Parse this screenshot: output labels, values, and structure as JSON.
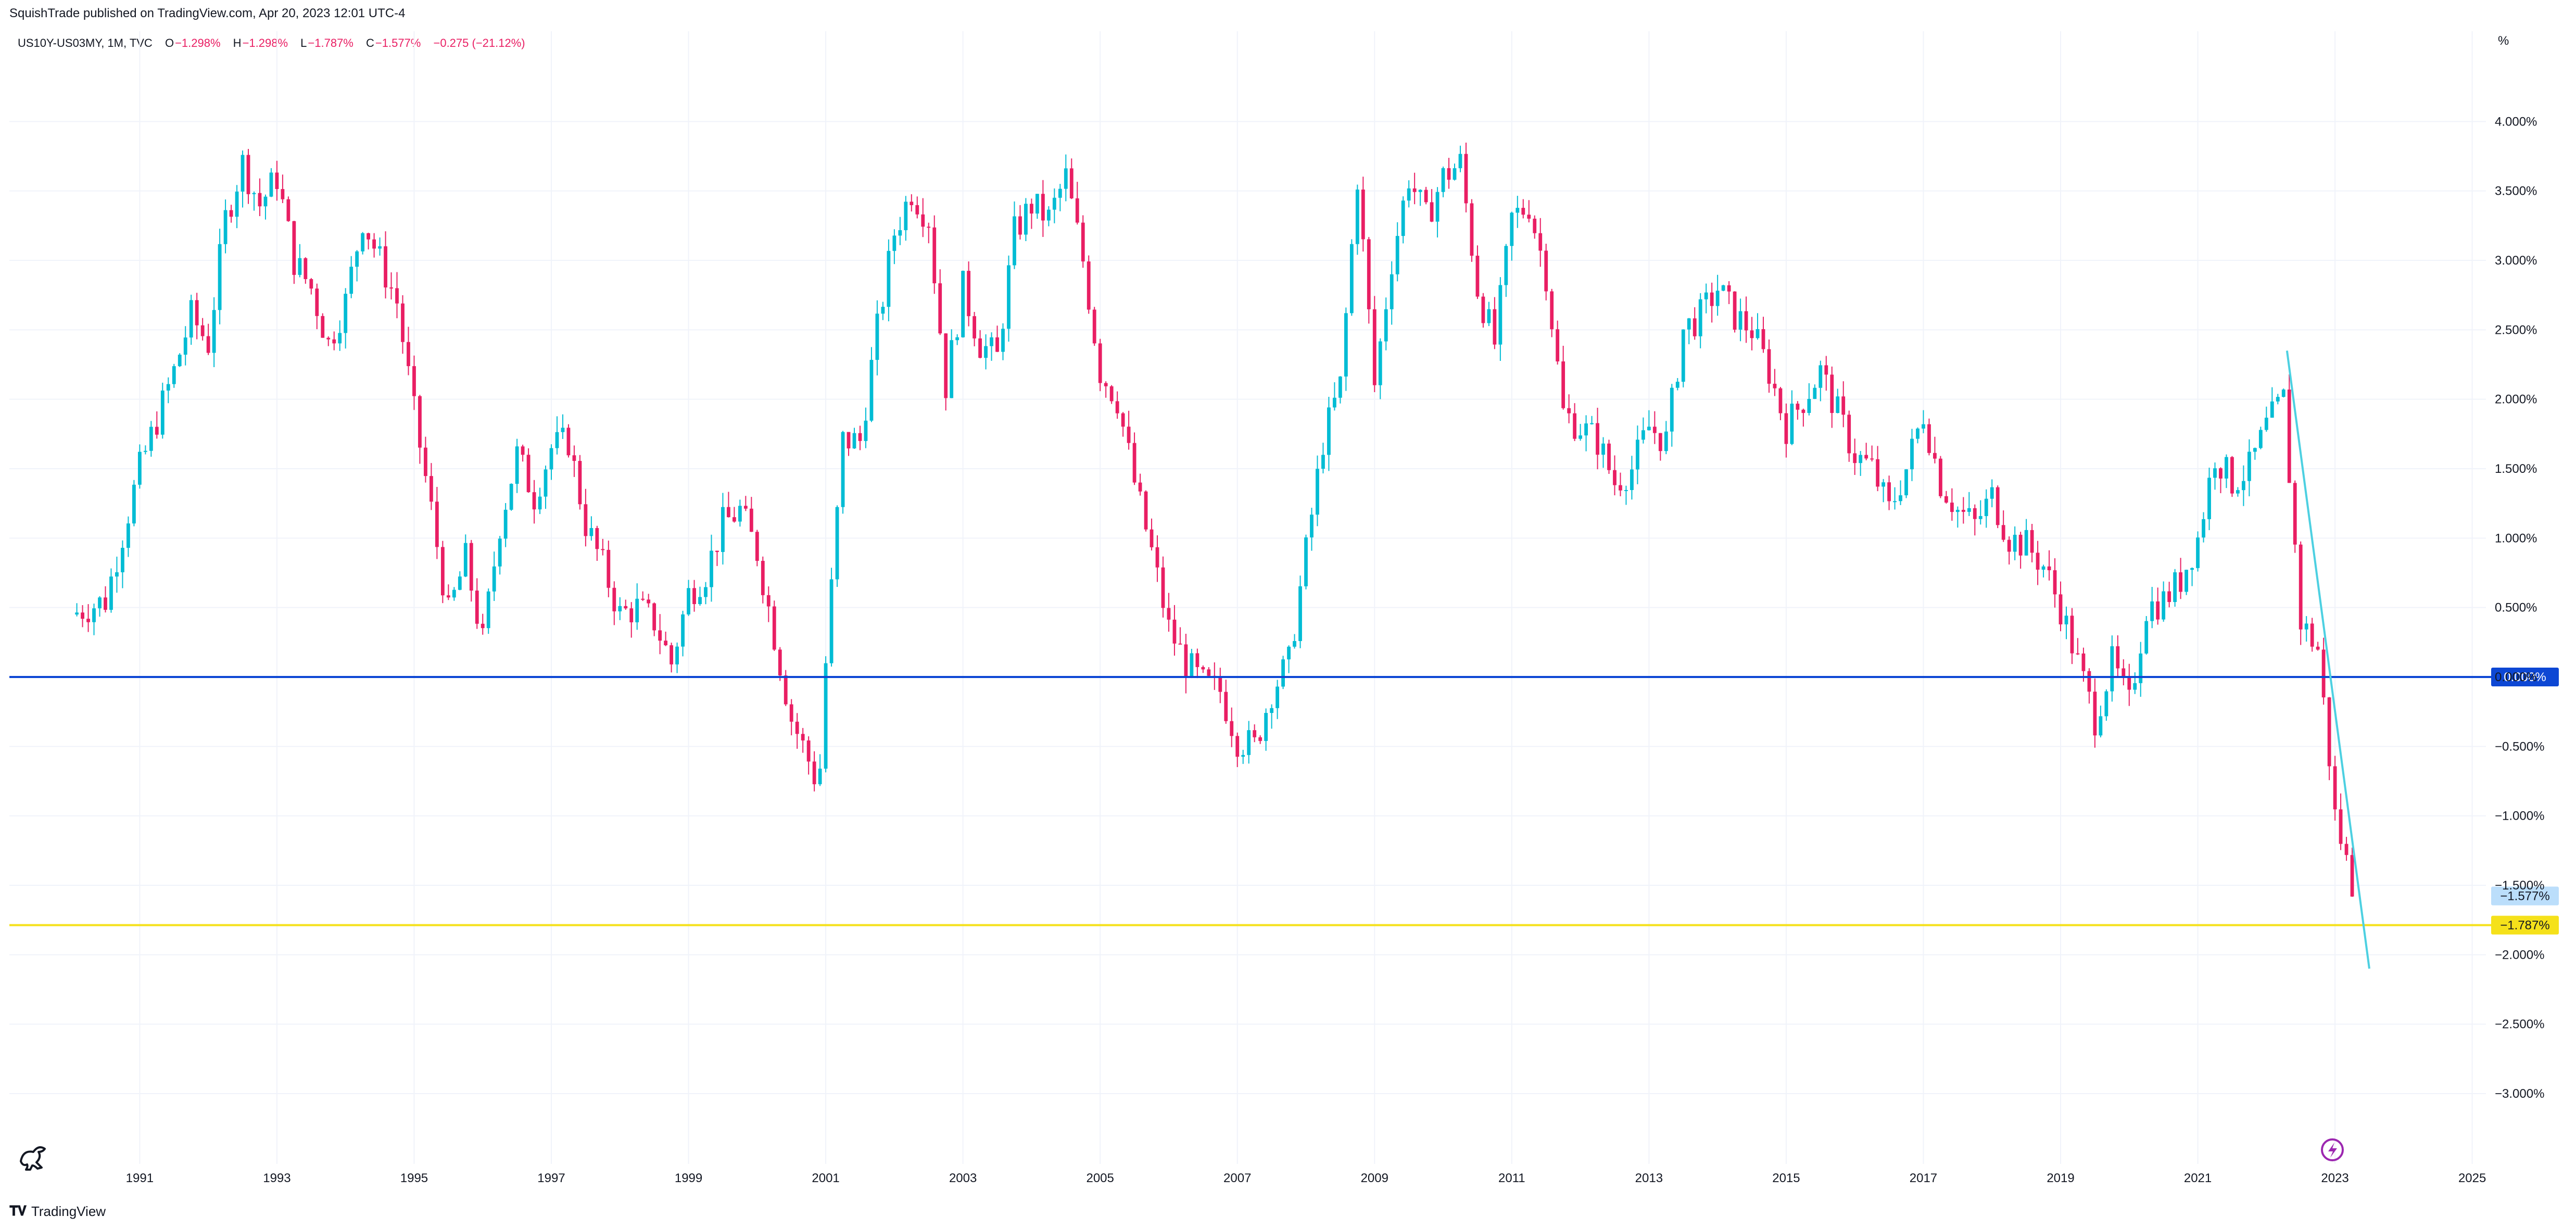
{
  "header": {
    "published": "SquishTrade published on TradingView.com, Apr 20, 2023 12:01 UTC-4"
  },
  "legend": {
    "symbol": "US10Y-US03MY, 1M, TVC",
    "o_label": "O",
    "o_value": "−1.298%",
    "h_label": "H",
    "h_value": "−1.298%",
    "l_label": "L",
    "l_value": "−1.787%",
    "c_label": "C",
    "c_value": "−1.577%",
    "change": "−0.275 (−21.12%)"
  },
  "footer": {
    "brand": "TradingView"
  },
  "colors": {
    "up": "#00bcd4",
    "down": "#e91e63",
    "zero_line": "#0d47d4",
    "low_line": "#f5e11a",
    "trendline": "#4dd0e1",
    "grid": "#f0f3fa"
  },
  "chart_data": {
    "type": "candlestick",
    "unit": "%",
    "y_axis_ticks": [
      "4.000%",
      "3.500%",
      "3.000%",
      "2.500%",
      "2.000%",
      "1.500%",
      "1.000%",
      "0.500%",
      "0.000%",
      "−0.500%",
      "−1.000%",
      "−1.500%",
      "−2.000%",
      "−2.500%",
      "−3.000%"
    ],
    "y_tick_values": [
      4.0,
      3.5,
      3.0,
      2.5,
      2.0,
      1.5,
      1.0,
      0.5,
      0.0,
      -0.5,
      -1.0,
      -1.5,
      -2.0,
      -2.5,
      -3.0
    ],
    "ylim": [
      -3.3,
      4.5
    ],
    "x_axis_ticks": [
      "1991",
      "1993",
      "1995",
      "1997",
      "1999",
      "2001",
      "2003",
      "2005",
      "2007",
      "2009",
      "2011",
      "2013",
      "2015",
      "2017",
      "2019",
      "2021",
      "2023",
      "2025"
    ],
    "xlim": [
      1989.1,
      2025.2
    ],
    "horizontal_lines": [
      {
        "value": 0.0,
        "label": "0.000%"
      },
      {
        "value": -1.787,
        "label": "−1.787%"
      }
    ],
    "last_price_label": {
      "value": -1.577,
      "label": "−1.577%"
    },
    "trendline": {
      "start": [
        2022.3,
        2.35
      ],
      "end": [
        2023.5,
        -2.1
      ]
    },
    "monthly_close_anchors": [
      [
        1990.0,
        0.45
      ],
      [
        1990.5,
        0.55
      ],
      [
        1991.0,
        1.5
      ],
      [
        1991.5,
        2.2
      ],
      [
        1991.75,
        2.6
      ],
      [
        1992.0,
        2.4
      ],
      [
        1992.25,
        3.3
      ],
      [
        1992.5,
        3.7
      ],
      [
        1992.75,
        3.4
      ],
      [
        1993.0,
        3.6
      ],
      [
        1993.25,
        3.0
      ],
      [
        1993.5,
        2.8
      ],
      [
        1993.75,
        2.4
      ],
      [
        1994.0,
        2.7
      ],
      [
        1994.25,
        3.3
      ],
      [
        1994.5,
        3.0
      ],
      [
        1994.75,
        2.7
      ],
      [
        1995.0,
        1.9
      ],
      [
        1995.25,
        1.2
      ],
      [
        1995.5,
        0.45
      ],
      [
        1995.75,
        0.85
      ],
      [
        1996.0,
        0.25
      ],
      [
        1996.25,
        1.1
      ],
      [
        1996.5,
        1.6
      ],
      [
        1996.75,
        1.3
      ],
      [
        1997.0,
        1.65
      ],
      [
        1997.25,
        1.7
      ],
      [
        1997.5,
        1.1
      ],
      [
        1997.75,
        0.8
      ],
      [
        1998.0,
        0.45
      ],
      [
        1998.25,
        0.5
      ],
      [
        1998.5,
        0.4
      ],
      [
        1998.75,
        0.1
      ],
      [
        1999.0,
        0.6
      ],
      [
        1999.25,
        0.75
      ],
      [
        1999.5,
        1.1
      ],
      [
        1999.75,
        1.2
      ],
      [
        2000.0,
        0.9
      ],
      [
        2000.25,
        0.3
      ],
      [
        2000.5,
        -0.3
      ],
      [
        2000.75,
        -0.6
      ],
      [
        2000.9,
        -0.8
      ],
      [
        2001.0,
        0.1
      ],
      [
        2001.25,
        1.7
      ],
      [
        2001.5,
        1.7
      ],
      [
        2001.75,
        2.5
      ],
      [
        2002.0,
        3.2
      ],
      [
        2002.25,
        3.5
      ],
      [
        2002.5,
        3.3
      ],
      [
        2002.75,
        2.1
      ],
      [
        2003.0,
        2.8
      ],
      [
        2003.25,
        2.4
      ],
      [
        2003.5,
        2.3
      ],
      [
        2003.75,
        3.2
      ],
      [
        2004.0,
        3.4
      ],
      [
        2004.25,
        3.3
      ],
      [
        2004.5,
        3.6
      ],
      [
        2004.75,
        3.0
      ],
      [
        2005.0,
        2.2
      ],
      [
        2005.25,
        2.0
      ],
      [
        2005.5,
        1.4
      ],
      [
        2005.75,
        0.9
      ],
      [
        2006.0,
        0.35
      ],
      [
        2006.25,
        0.1
      ],
      [
        2006.5,
        -0.05
      ],
      [
        2006.75,
        -0.1
      ],
      [
        2007.0,
        -0.45
      ],
      [
        2007.25,
        -0.5
      ],
      [
        2007.5,
        -0.1
      ],
      [
        2007.75,
        0.1
      ],
      [
        2008.0,
        0.9
      ],
      [
        2008.25,
        1.7
      ],
      [
        2008.5,
        2.1
      ],
      [
        2008.75,
        3.6
      ],
      [
        2009.0,
        2.1
      ],
      [
        2009.25,
        3.0
      ],
      [
        2009.5,
        3.6
      ],
      [
        2009.75,
        3.3
      ],
      [
        2010.0,
        3.6
      ],
      [
        2010.25,
        3.7
      ],
      [
        2010.5,
        2.8
      ],
      [
        2010.75,
        2.4
      ],
      [
        2011.0,
        3.3
      ],
      [
        2011.25,
        3.4
      ],
      [
        2011.5,
        2.9
      ],
      [
        2011.75,
        1.9
      ],
      [
        2012.0,
        1.8
      ],
      [
        2012.25,
        1.7
      ],
      [
        2012.5,
        1.4
      ],
      [
        2012.75,
        1.5
      ],
      [
        2013.0,
        1.8
      ],
      [
        2013.25,
        1.7
      ],
      [
        2013.5,
        2.5
      ],
      [
        2013.75,
        2.6
      ],
      [
        2014.0,
        2.8
      ],
      [
        2014.25,
        2.6
      ],
      [
        2014.5,
        2.5
      ],
      [
        2014.75,
        2.2
      ],
      [
        2015.0,
        1.8
      ],
      [
        2015.25,
        2.0
      ],
      [
        2015.5,
        2.2
      ],
      [
        2015.75,
        1.9
      ],
      [
        2016.0,
        1.6
      ],
      [
        2016.25,
        1.5
      ],
      [
        2016.5,
        1.2
      ],
      [
        2016.75,
        1.5
      ],
      [
        2017.0,
        1.9
      ],
      [
        2017.25,
        1.4
      ],
      [
        2017.5,
        1.2
      ],
      [
        2017.75,
        1.1
      ],
      [
        2018.0,
        1.3
      ],
      [
        2018.25,
        1.0
      ],
      [
        2018.5,
        0.95
      ],
      [
        2018.75,
        0.8
      ],
      [
        2019.0,
        0.5
      ],
      [
        2019.25,
        0.1
      ],
      [
        2019.5,
        -0.3
      ],
      [
        2019.75,
        0.1
      ],
      [
        2020.0,
        -0.2
      ],
      [
        2020.25,
        0.5
      ],
      [
        2020.5,
        0.55
      ],
      [
        2020.75,
        0.7
      ],
      [
        2021.0,
        1.0
      ],
      [
        2021.25,
        1.6
      ],
      [
        2021.5,
        1.4
      ],
      [
        2021.75,
        1.5
      ],
      [
        2022.0,
        1.8
      ],
      [
        2022.25,
        2.0
      ],
      [
        2022.5,
        0.4
      ],
      [
        2022.75,
        0.2
      ],
      [
        2022.9,
        -0.5
      ],
      [
        2023.0,
        -1.0
      ],
      [
        2023.15,
        -1.3
      ],
      [
        2023.3,
        -1.577
      ]
    ]
  }
}
